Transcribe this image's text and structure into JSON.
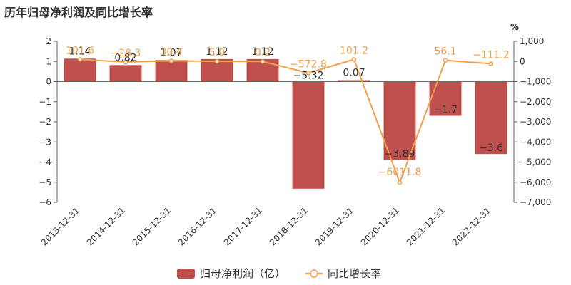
{
  "chart_data": {
    "type": "bar",
    "title": "历年归母净利润及同比增长率",
    "categories": [
      "2013-12-31",
      "2014-12-31",
      "2015-12-31",
      "2016-12-31",
      "2017-12-31",
      "2018-12-31",
      "2019-12-31",
      "2020-12-31",
      "2021-12-31",
      "2022-12-31"
    ],
    "series": [
      {
        "name": "归母净利润（亿）",
        "type": "bar",
        "axis": "left",
        "values": [
          1.14,
          0.82,
          1.07,
          1.12,
          1.12,
          -5.32,
          0.07,
          -3.89,
          -1.7,
          -3.6
        ],
        "labels": [
          "1.14",
          "0.82",
          "1.07",
          "1.12",
          "1.12",
          "−5.32",
          "0.07",
          "−3.89",
          "−1.7",
          "−3.6"
        ]
      },
      {
        "name": "同比增长率",
        "type": "line",
        "axis": "right",
        "values": [
          101.6,
          -28.3,
          30.4,
          5.0,
          0.2,
          -572.8,
          101.2,
          -6011.8,
          56.1,
          -111.2
        ],
        "labels": [
          "101.6",
          "−28.3",
          "30.4",
          "5.0",
          "0.2",
          "−572.8",
          "101.2",
          "−6011.8",
          "56.1",
          "−111.2"
        ]
      }
    ],
    "ylim_left": [
      -6,
      2
    ],
    "yticks_left": [
      "2",
      "1",
      "0",
      "−1",
      "−2",
      "−3",
      "−4",
      "−5",
      "−6"
    ],
    "ylim_right": [
      -7000,
      1000
    ],
    "yticks_right": [
      "1,000",
      "0",
      "−1,000",
      "−2,000",
      "−3,000",
      "−4,000",
      "−5,000",
      "−6,000",
      "−7,000"
    ],
    "ylabel_right": "%",
    "grid": false,
    "legend_position": "bottom",
    "colors": {
      "bar": "#c0504d",
      "line": "#f0a04b",
      "axis": "#666666",
      "text": "#333333"
    }
  }
}
